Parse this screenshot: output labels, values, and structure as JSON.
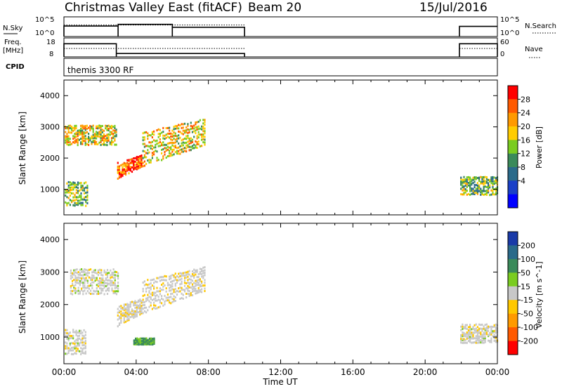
{
  "header": {
    "station": "Christmas Valley East (fitACF)",
    "beam": "Beam 20",
    "date": "15/Jul/2016"
  },
  "top_panels": {
    "nsky_label": "N.Sky",
    "nsky_ticks": [
      "10^5",
      "10^0"
    ],
    "nsearch_label": "N.Search",
    "nsearch_ticks": [
      "10^5",
      "10^0"
    ],
    "freq_label_1": "Freq.",
    "freq_label_2": "[MHz]",
    "freq_ticks": [
      "18",
      "8"
    ],
    "nave_label": "Nave",
    "nave_ticks": [
      "60",
      "0"
    ],
    "cpid_label": "CPID",
    "cpid_value": "themis 3300 RF"
  },
  "power_colorbar": {
    "label": "Power [dB]",
    "ticks": [
      "28",
      "24",
      "20",
      "16",
      "12",
      "8",
      "4"
    ],
    "colors": [
      "#ff0000",
      "#ff5a00",
      "#ff9a00",
      "#ffcc00",
      "#7acc20",
      "#3a8a5a",
      "#2a6a8a",
      "#1a40c8",
      "#0000ff"
    ]
  },
  "velocity_colorbar": {
    "label": "Velocity [m s^-1]",
    "ticks": [
      "200",
      "100",
      "50",
      "15",
      "-15",
      "-50",
      "-100",
      "-200"
    ],
    "colors": [
      "#1a3aa8",
      "#2a6a8a",
      "#3a8a5a",
      "#7acc20",
      "#c8c8c8",
      "#ffc800",
      "#ff9a00",
      "#ff5a00",
      "#ff0000"
    ]
  },
  "chart_data": {
    "type": "heatmap",
    "x_axis": {
      "label": "Time UT",
      "ticks": [
        "00:00",
        "04:00",
        "08:00",
        "12:00",
        "16:00",
        "20:00",
        "00:00"
      ],
      "range_hours": [
        0,
        24
      ]
    },
    "y_axis": {
      "label": "Slant Range [km]",
      "ticks": [
        "4000",
        "3000",
        "2000",
        "1000"
      ],
      "range_km": [
        180,
        4500
      ]
    },
    "panels": [
      {
        "name": "Power",
        "bands": [
          {
            "t0": 0.0,
            "t1": 2.9,
            "r0": 2450,
            "r1": 3100,
            "value": 18
          },
          {
            "t0": 2.9,
            "t1": 4.3,
            "r0": 1350,
            "r1": 1900,
            "value": 26
          },
          {
            "t0": 4.3,
            "t1": 7.8,
            "r0": 1750,
            "r1": 2900,
            "value": 19
          },
          {
            "t0": 0.0,
            "t1": 1.3,
            "r0": 500,
            "r1": 1300,
            "value": 14
          },
          {
            "t0": 21.9,
            "t1": 24.0,
            "r0": 850,
            "r1": 1450,
            "value": 14
          }
        ]
      },
      {
        "name": "Velocity",
        "bands": [
          {
            "t0": 0.3,
            "t1": 3.0,
            "r0": 2350,
            "r1": 3150,
            "value": 0
          },
          {
            "t0": 2.9,
            "t1": 4.3,
            "r0": 1350,
            "r1": 2000,
            "value": -10
          },
          {
            "t0": 4.3,
            "t1": 7.8,
            "r0": 1750,
            "r1": 2800,
            "value": -5
          },
          {
            "t0": 0.0,
            "t1": 1.2,
            "r0": 500,
            "r1": 1300,
            "value": 0
          },
          {
            "t0": 3.8,
            "t1": 5.0,
            "r0": 800,
            "r1": 1000,
            "value": 40
          },
          {
            "t0": 21.9,
            "t1": 24.0,
            "r0": 850,
            "r1": 1450,
            "value": 0
          }
        ]
      }
    ],
    "nsky_series": [
      {
        "t0": 0.0,
        "t1": 3.0,
        "value": 0.62
      },
      {
        "t0": 3.0,
        "t1": 6.0,
        "value": 0.72
      },
      {
        "t0": 6.0,
        "t1": 10.0,
        "value": 0.55
      }
    ],
    "freq_series": [
      {
        "t0": 0.0,
        "t1": 2.9,
        "value_mhz": 16.5
      },
      {
        "t0": 2.9,
        "t1": 10.0,
        "value_mhz": 10.2
      },
      {
        "t0": 21.9,
        "t1": 24.0,
        "value_mhz": 16.5
      }
    ],
    "data_gaps": [
      {
        "t0": 10.0,
        "t1": 21.9
      }
    ]
  }
}
